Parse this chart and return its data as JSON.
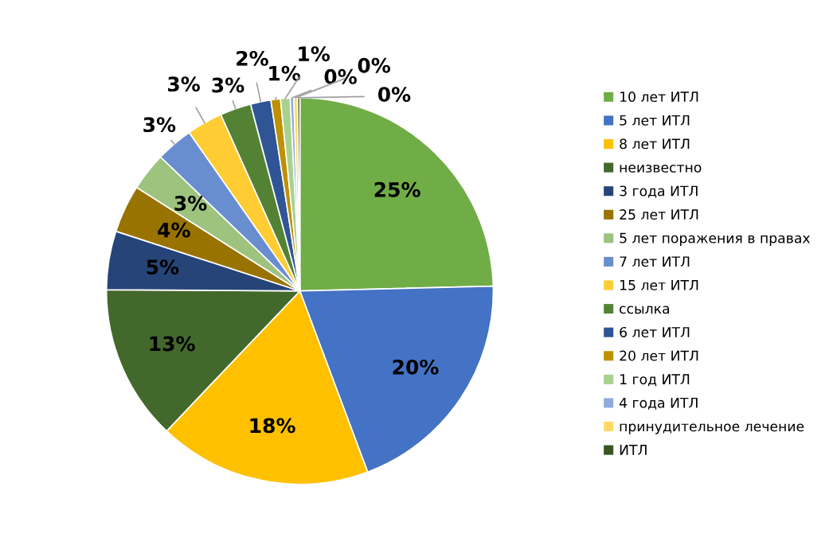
{
  "chart_data": {
    "type": "pie",
    "categories": [
      "10 лет ИТЛ",
      "5 лет ИТЛ",
      "8 лет ИТЛ",
      "неизвестно",
      "3 года ИТЛ",
      "25 лет ИТЛ",
      "5 лет поражения в правах",
      "7 лет ИТЛ",
      "15 лет ИТЛ",
      "ссылка",
      "6 лет ИТЛ",
      "20 лет ИТЛ",
      "1 год ИТЛ",
      "4 года ИТЛ",
      "принудительное лечение",
      "ИТЛ"
    ],
    "values": [
      24.6,
      19.7,
      17.8,
      13.0,
      4.9,
      4.0,
      3.2,
      3.1,
      3.0,
      2.6,
      1.7,
      0.8,
      0.8,
      0.3,
      0.3,
      0.2
    ],
    "value_labels": [
      "25%",
      "20%",
      "18%",
      "13%",
      "5%",
      "4%",
      "3%",
      "3%",
      "3%",
      "3%",
      "2%",
      "1%",
      "1%",
      "0%",
      "0%",
      "0%"
    ],
    "colors": [
      "#70ad47",
      "#4472c4",
      "#ffc000",
      "#43682b",
      "#264478",
      "#997300",
      "#9dc37f",
      "#698ed0",
      "#ffcd33",
      "#548235",
      "#2f5597",
      "#bf9000",
      "#a9d18e",
      "#8faadc",
      "#ffd966",
      "#375623"
    ],
    "legend": "right"
  }
}
